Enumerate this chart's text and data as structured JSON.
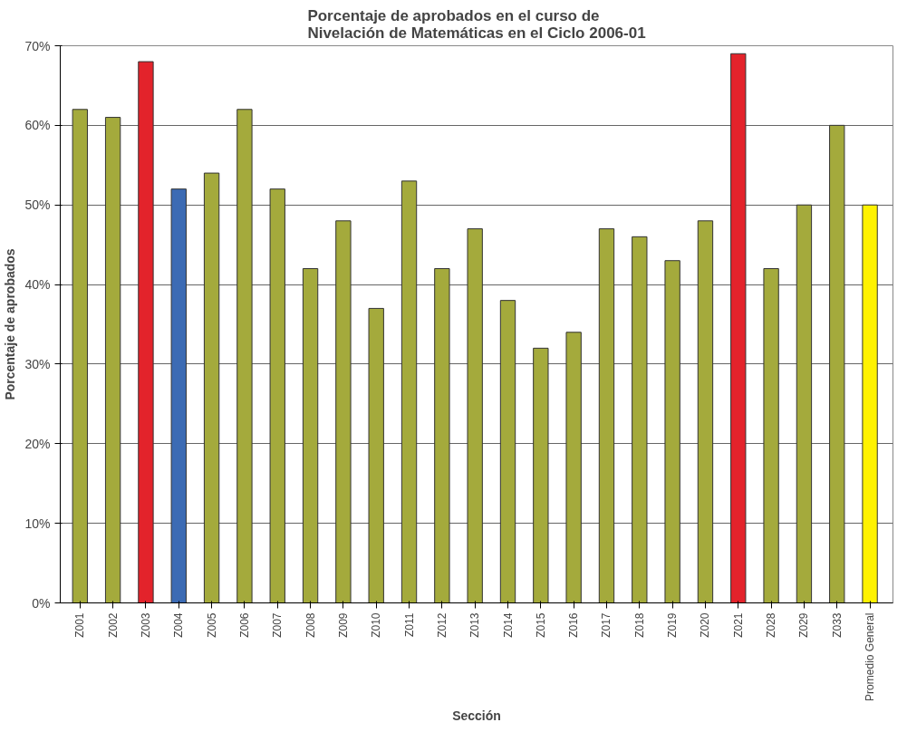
{
  "chart_data": {
    "type": "bar",
    "title": "Porcentaje de aprobados en el curso de\nNivelación de Matemáticas en el Ciclo 2006-01",
    "xlabel": "Sección",
    "ylabel": "Porcentaje de aprobados",
    "categories": [
      "Z001",
      "Z002",
      "Z003",
      "Z004",
      "Z005",
      "Z006",
      "Z007",
      "Z008",
      "Z009",
      "Z010",
      "Z011",
      "Z012",
      "Z013",
      "Z014",
      "Z015",
      "Z016",
      "Z017",
      "Z018",
      "Z019",
      "Z020",
      "Z021",
      "Z028",
      "Z029",
      "Z033",
      "Promedio General"
    ],
    "values": [
      62,
      61,
      68,
      52,
      54,
      62,
      52,
      42,
      48,
      37,
      53,
      42,
      47,
      38,
      32,
      34,
      47,
      46,
      43,
      48,
      69,
      42,
      50,
      60,
      50
    ],
    "colors": [
      "#a4aa3c",
      "#a4aa3c",
      "#e3232b",
      "#3c6bb4",
      "#a4aa3c",
      "#a4aa3c",
      "#a4aa3c",
      "#a4aa3c",
      "#a4aa3c",
      "#a4aa3c",
      "#a4aa3c",
      "#a4aa3c",
      "#a4aa3c",
      "#a4aa3c",
      "#a4aa3c",
      "#a4aa3c",
      "#a4aa3c",
      "#a4aa3c",
      "#a4aa3c",
      "#a4aa3c",
      "#e3232b",
      "#a4aa3c",
      "#a4aa3c",
      "#a4aa3c",
      "#fff200"
    ],
    "ylim": [
      0,
      70
    ],
    "yticks": [
      {
        "value": 0,
        "label": "0%"
      },
      {
        "value": 10,
        "label": "10%"
      },
      {
        "value": 20,
        "label": "20%"
      },
      {
        "value": 30,
        "label": "30%"
      },
      {
        "value": 40,
        "label": "40%"
      },
      {
        "value": 50,
        "label": "50%"
      },
      {
        "value": 60,
        "label": "60%"
      },
      {
        "value": 70,
        "label": "70%"
      }
    ],
    "grid": "y"
  }
}
